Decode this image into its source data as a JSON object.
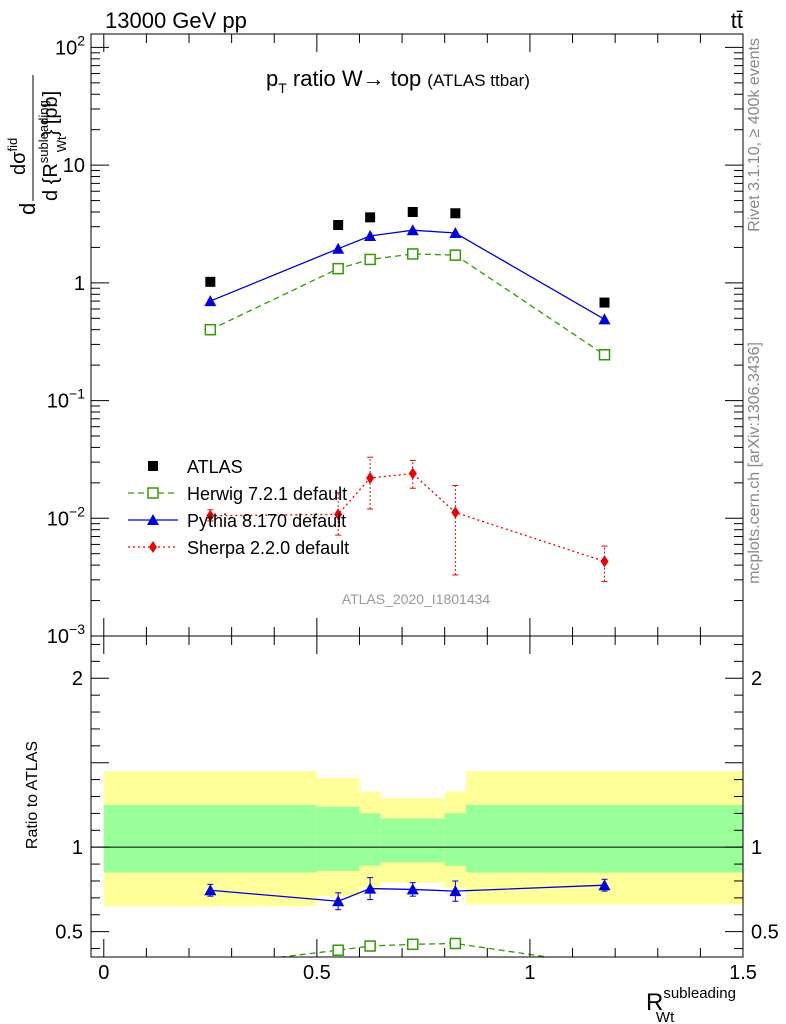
{
  "header": {
    "left": "13000 GeV pp",
    "right": "tt̄"
  },
  "side_labels": {
    "rivet": "Rivet 3.1.10, ≥ 400k events",
    "mcplots": "mcplots.cern.ch [arXiv:1306.3436]"
  },
  "watermark": "ATLAS_2020_I1801434",
  "colors": {
    "atlas": "#000000",
    "herwig": "#339900",
    "pythia": "#0000dd",
    "sherpa": "#ee0000",
    "band_outer": "#ffff99",
    "band_inner": "#99ff99"
  },
  "chart_data": [
    {
      "type": "scatter",
      "panel": "main",
      "title_main": "p",
      "title_sub": "T",
      "title_rest": " ratio W→ top",
      "title_small": "(ATLAS ttbar)",
      "ylabel_parts": [
        "d",
        "dσ",
        "fid",
        "d {R",
        "subleading",
        "Wt",
        "} [pb]"
      ],
      "yscale": "log",
      "ylim": [
        0.001,
        130
      ],
      "xlim": [
        -0.03,
        1.5
      ],
      "yticks": [
        {
          "value": 0.001,
          "base": "10",
          "exp": "−3"
        },
        {
          "value": 0.01,
          "base": "10",
          "exp": "−2"
        },
        {
          "value": 0.1,
          "base": "10",
          "exp": "−1"
        },
        {
          "value": 1,
          "base": "1",
          "exp": ""
        },
        {
          "value": 10,
          "base": "10",
          "exp": ""
        },
        {
          "value": 100,
          "base": "10",
          "exp": "2"
        }
      ],
      "legend": {
        "placement": "lower-left",
        "entries": [
          "ATLAS",
          "Herwig 7.2.1 default",
          "Pythia 8.170 default",
          "Sherpa 2.2.0 default"
        ]
      },
      "series": [
        {
          "name": "ATLAS",
          "marker": "square",
          "x": [
            0.25,
            0.55,
            0.625,
            0.725,
            0.825,
            1.175
          ],
          "y": [
            1.02,
            3.1,
            3.6,
            4.0,
            3.9,
            0.68
          ]
        },
        {
          "name": "Herwig 7.2.1 default",
          "marker": "open-square",
          "line": "dashed",
          "x": [
            0.25,
            0.55,
            0.625,
            0.725,
            0.825,
            1.175
          ],
          "y": [
            0.4,
            1.32,
            1.58,
            1.76,
            1.72,
            0.245
          ]
        },
        {
          "name": "Pythia 8.170 default",
          "marker": "triangle",
          "line": "solid",
          "x": [
            0.25,
            0.55,
            0.625,
            0.725,
            0.825,
            1.175
          ],
          "y": [
            0.7,
            1.95,
            2.5,
            2.8,
            2.65,
            0.49
          ]
        },
        {
          "name": "Sherpa 2.2.0 default",
          "marker": "diamond",
          "line": "dotted",
          "x": [
            0.25,
            0.55,
            0.625,
            0.725,
            0.825,
            1.175
          ],
          "y": [
            0.0105,
            0.0108,
            0.022,
            0.024,
            0.0112,
            0.0043
          ],
          "ylo": [
            0.0095,
            0.0072,
            0.012,
            0.018,
            0.0033,
            0.0029
          ],
          "yhi": [
            0.0118,
            0.0165,
            0.033,
            0.031,
            0.019,
            0.0058
          ]
        }
      ]
    },
    {
      "type": "line",
      "panel": "ratio",
      "ylabel": "Ratio to ATLAS",
      "xlabel_main": "R",
      "xlabel_sup": "subleading",
      "xlabel_sub": "Wt",
      "ylim": [
        0.35,
        2.25
      ],
      "xlim": [
        -0.03,
        1.5
      ],
      "xticks": [
        {
          "value": 0,
          "label": "0"
        },
        {
          "value": 0.5,
          "label": "0.5"
        },
        {
          "value": 1,
          "label": "1"
        },
        {
          "value": 1.5,
          "label": "1.5"
        }
      ],
      "yticks_left": [
        {
          "value": 0.5,
          "label": "0.5"
        },
        {
          "value": 1,
          "label": "1"
        },
        {
          "value": 2,
          "label": "2"
        }
      ],
      "yticks_right": [
        {
          "value": 0.5,
          "label": "0.5"
        },
        {
          "value": 1,
          "label": "1"
        },
        {
          "value": 2,
          "label": "2"
        }
      ],
      "bands": {
        "edges": [
          0.0,
          0.5,
          0.6,
          0.65,
          0.8,
          0.85,
          1.5
        ],
        "outer_lo": [
          0.65,
          0.71,
          0.76,
          0.79,
          0.76,
          0.66
        ],
        "outer_hi": [
          1.45,
          1.41,
          1.33,
          1.29,
          1.33,
          1.45
        ],
        "inner_lo": [
          0.85,
          0.86,
          0.89,
          0.91,
          0.89,
          0.85
        ],
        "inner_hi": [
          1.25,
          1.24,
          1.2,
          1.17,
          1.2,
          1.25
        ]
      },
      "series": [
        {
          "name": "Pythia 8.170 default",
          "x": [
            0.25,
            0.55,
            0.625,
            0.725,
            0.825,
            1.175
          ],
          "y": [
            0.745,
            0.68,
            0.755,
            0.75,
            0.74,
            0.775
          ],
          "ylo": [
            0.71,
            0.63,
            0.69,
            0.71,
            0.68,
            0.74
          ],
          "yhi": [
            0.78,
            0.73,
            0.82,
            0.79,
            0.8,
            0.81
          ]
        },
        {
          "name": "Herwig 7.2.1 default",
          "x": [
            0.25,
            0.55,
            0.625,
            0.725,
            0.825,
            1.175
          ],
          "y": [
            0.3,
            0.39,
            0.415,
            0.425,
            0.43,
            0.3
          ],
          "ylo": [
            0.29,
            0.38,
            0.395,
            0.41,
            0.41,
            0.29
          ],
          "yhi": [
            0.31,
            0.4,
            0.435,
            0.44,
            0.455,
            0.31
          ]
        }
      ]
    }
  ]
}
